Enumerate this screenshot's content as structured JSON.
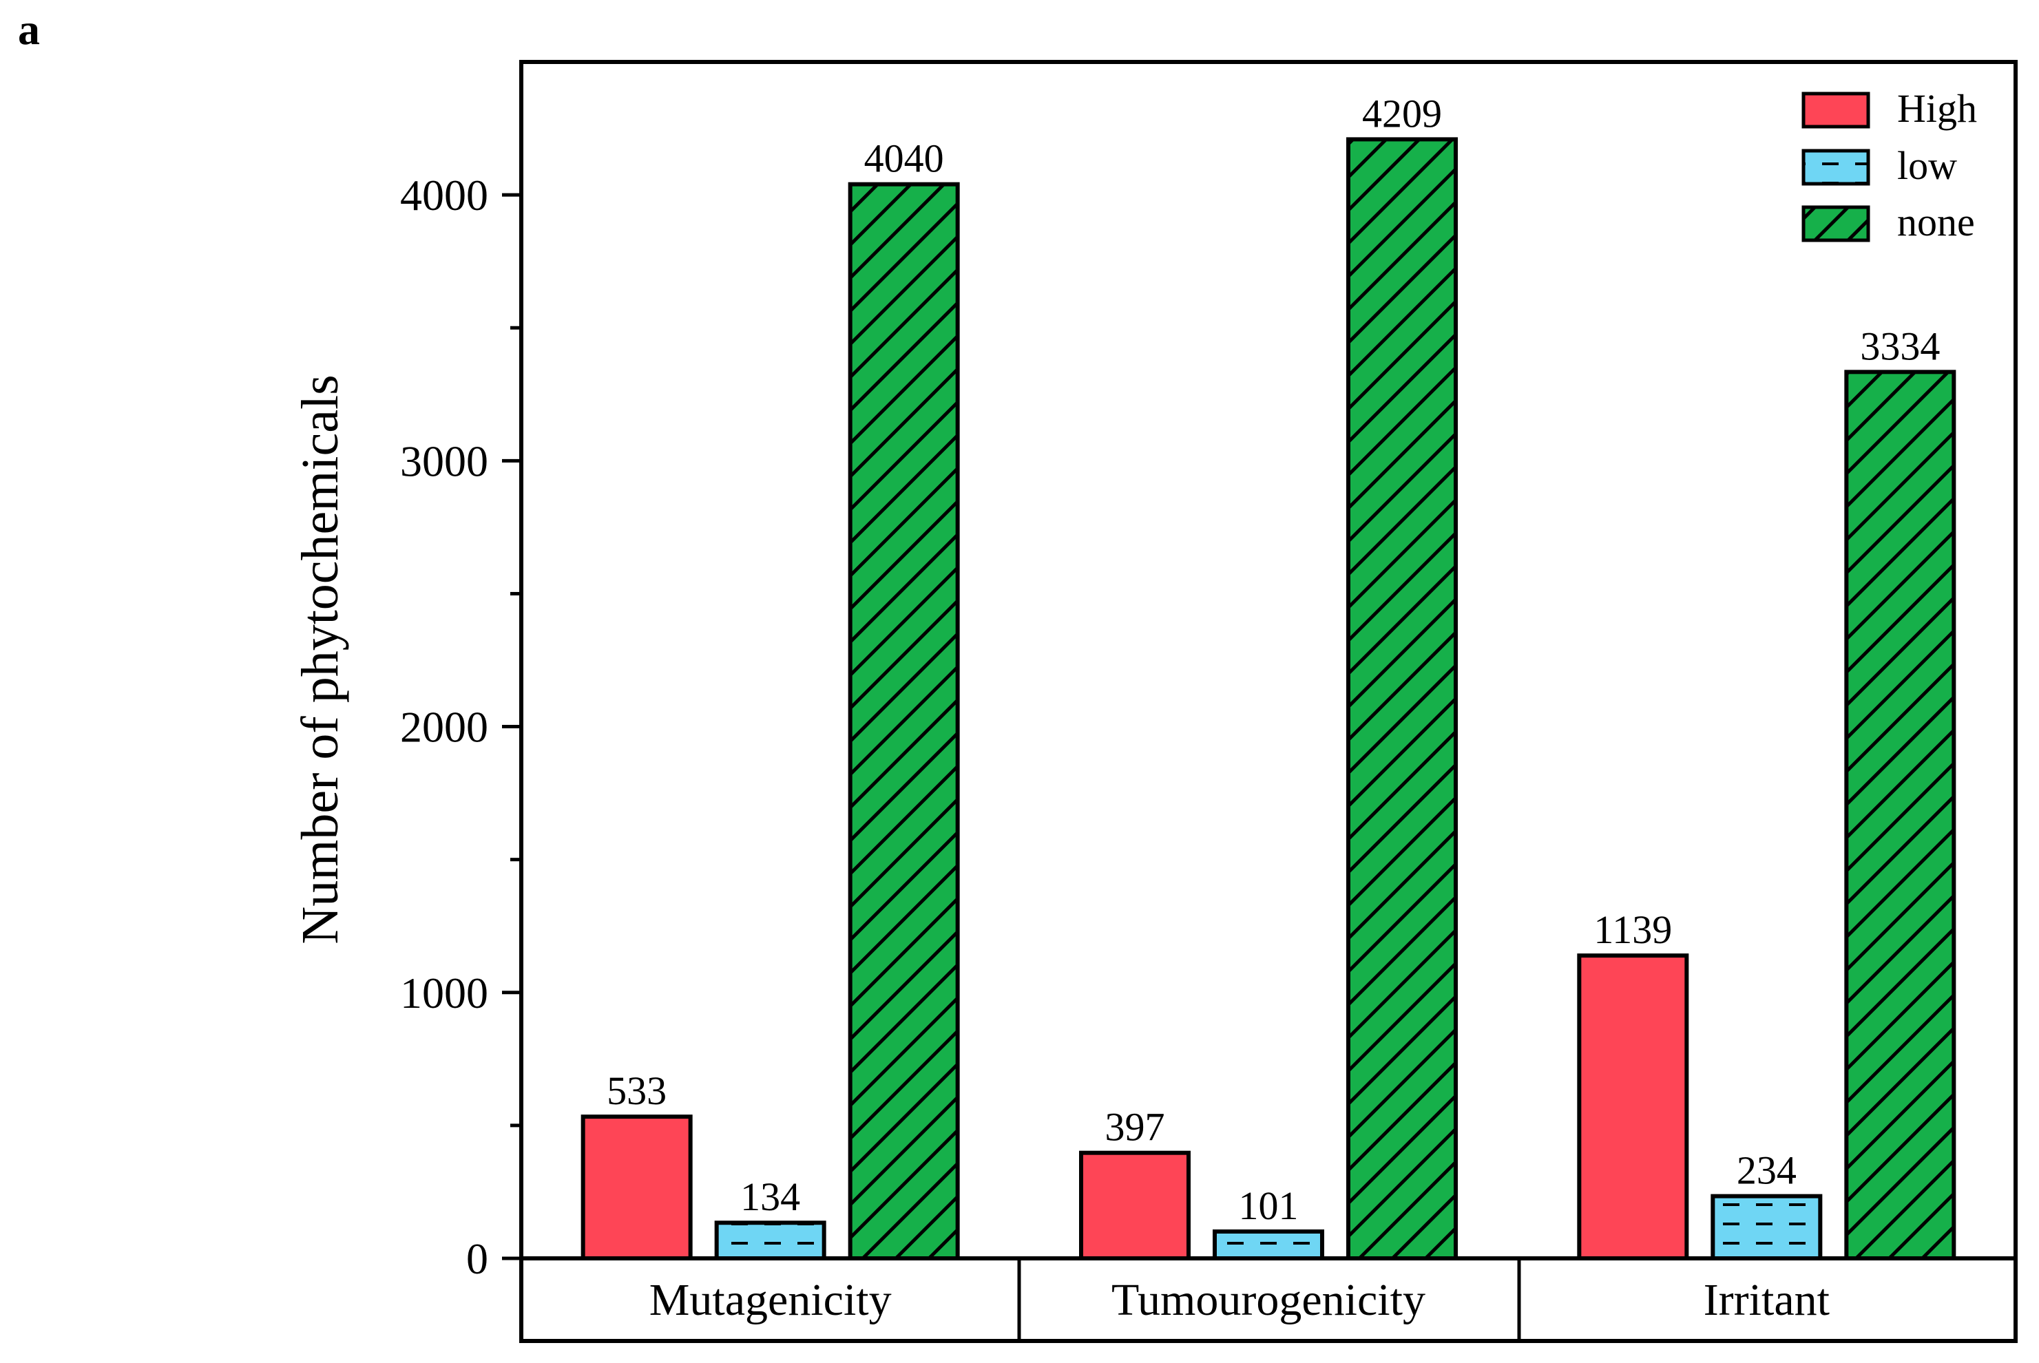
{
  "panel_label": "a",
  "chart_data": {
    "type": "bar",
    "categories": [
      "Mutagenicity",
      "Tumourogenicity",
      "Irritant"
    ],
    "series": [
      {
        "name": "High",
        "values": [
          533,
          397,
          1139
        ],
        "color": "#fe4556",
        "pattern": "solid"
      },
      {
        "name": "low",
        "values": [
          134,
          101,
          234
        ],
        "color": "#6fd6f4",
        "pattern": "dashes"
      },
      {
        "name": "none",
        "values": [
          4040,
          4209,
          3334
        ],
        "color": "#16b04a",
        "pattern": "diagonal-hatch"
      }
    ],
    "data_labels": [
      [
        "533",
        "397",
        "1139"
      ],
      [
        "134",
        "101",
        "234"
      ],
      [
        "4040",
        "4209",
        "3334"
      ]
    ],
    "title": "",
    "xlabel": "",
    "ylabel": "Number of phytochemicals",
    "ylim": [
      0,
      4500
    ],
    "yticks": [
      0,
      1000,
      2000,
      3000,
      4000
    ],
    "ytick_labels": [
      "0",
      "1000",
      "2000",
      "3000",
      "4000"
    ],
    "grid": false,
    "legend_position": "top-right"
  }
}
